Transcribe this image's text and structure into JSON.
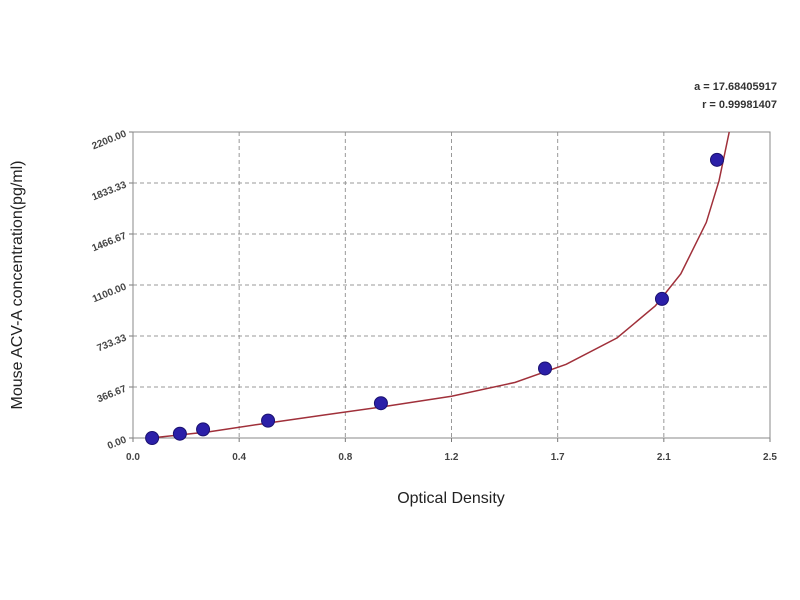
{
  "chart_data": {
    "type": "scatter",
    "annotations": [
      "a = 17.68405917",
      "r = 0.99981407"
    ],
    "x_label": "Optical Density",
    "y_label": "Mouse ACV-A concentration(pg/ml)",
    "xlim": [
      0,
      2.5
    ],
    "ylim": [
      0,
      2200
    ],
    "xticks": [
      {
        "value": 0,
        "label": "0.0"
      },
      {
        "value": 0.41667,
        "label": "0.4"
      },
      {
        "value": 0.83333,
        "label": "0.8"
      },
      {
        "value": 1.25,
        "label": "1.2"
      },
      {
        "value": 1.66667,
        "label": "1.7"
      },
      {
        "value": 2.08333,
        "label": "2.1"
      },
      2.5
    ],
    "yticks": [
      {
        "value": 0,
        "label": "0.00"
      },
      366.67,
      733.33,
      {
        "value": 1100,
        "label": "1100.00"
      },
      1466.67,
      1833.33,
      {
        "value": 2200,
        "label": "2200.00"
      }
    ],
    "grid": true,
    "series": [
      {
        "mode": "points",
        "color": "#2b1fa8",
        "x": [
          0.075,
          0.184,
          0.275,
          0.53,
          0.973,
          1.617,
          2.076,
          2.292
        ],
        "values": [
          0,
          31,
          62,
          125,
          250,
          500,
          1000,
          2000
        ]
      },
      {
        "mode": "line",
        "color": "#a0303a",
        "x": [
          0.07,
          0.3,
          0.5,
          0.75,
          1.0,
          1.25,
          1.5,
          1.7,
          1.9,
          2.05,
          2.15,
          2.25,
          2.3,
          2.34
        ],
        "values": [
          0,
          45,
          100,
          165,
          230,
          300,
          400,
          530,
          720,
          950,
          1180,
          1550,
          1850,
          2200
        ]
      }
    ]
  }
}
